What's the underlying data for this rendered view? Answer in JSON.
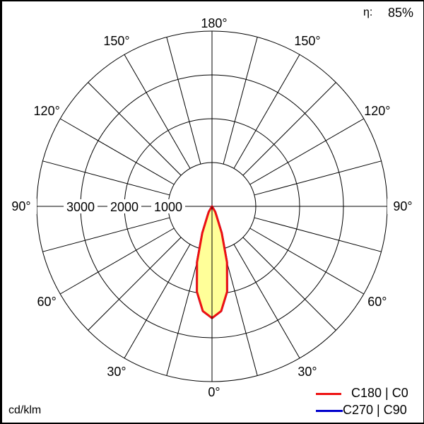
{
  "chart_data": {
    "type": "polar",
    "unit_label": "cd/klm",
    "efficiency_label": "η:",
    "efficiency_value": "85%",
    "radial_ticks": [
      1000,
      2000,
      3000,
      4000
    ],
    "radial_tick_labels": [
      "1000",
      "2000",
      "3000"
    ],
    "rmax": 4000,
    "angle_labels": [
      "0°",
      "30°",
      "60°",
      "90°",
      "120°",
      "150°",
      "180°"
    ],
    "angle_ticks": [
      0,
      30,
      60,
      90,
      120,
      150,
      180
    ],
    "spoke_step_deg": 15,
    "series": [
      {
        "name": "C270 | C90",
        "color": "#0000cc",
        "fill": "#ffff99",
        "angles": [
          0,
          5,
          10,
          15,
          20,
          25,
          30,
          35,
          40
        ],
        "values": [
          2550,
          2400,
          1980,
          1320,
          650,
          250,
          150,
          0,
          0
        ]
      },
      {
        "name": "C180 | C0",
        "color": "#ee1111",
        "fill": "#ffff99",
        "angles": [
          0,
          5,
          10,
          15,
          20,
          25,
          30,
          35,
          40
        ],
        "values": [
          2550,
          2400,
          1980,
          1320,
          650,
          250,
          150,
          0,
          0
        ]
      }
    ],
    "legend_placement": "bottom-right",
    "legend": [
      "C180 | C0",
      "C270 | C90"
    ]
  }
}
